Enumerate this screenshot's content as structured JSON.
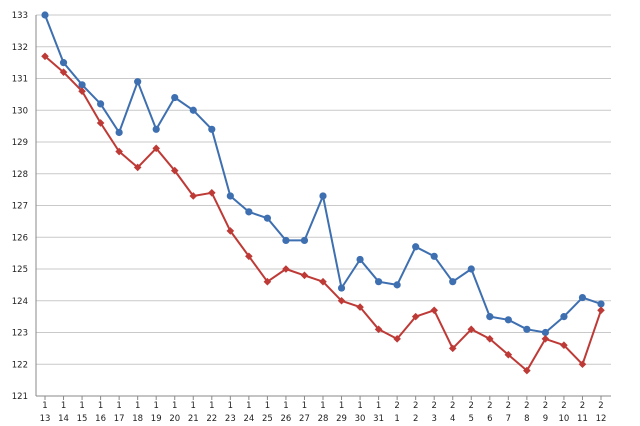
{
  "chart_data": {
    "type": "line",
    "title": "",
    "xlabel": "",
    "ylabel": "",
    "ylim": [
      121,
      133
    ],
    "y_ticks": [
      121,
      122,
      123,
      124,
      125,
      126,
      127,
      128,
      129,
      130,
      131,
      132,
      133
    ],
    "grid": "horizontal",
    "legend": "none",
    "categories": [
      {
        "line1": "1",
        "line2": "13"
      },
      {
        "line1": "1",
        "line2": "14"
      },
      {
        "line1": "1",
        "line2": "15"
      },
      {
        "line1": "1",
        "line2": "16"
      },
      {
        "line1": "1",
        "line2": "17"
      },
      {
        "line1": "1",
        "line2": "18"
      },
      {
        "line1": "1",
        "line2": "19"
      },
      {
        "line1": "1",
        "line2": "20"
      },
      {
        "line1": "1",
        "line2": "21"
      },
      {
        "line1": "1",
        "line2": "22"
      },
      {
        "line1": "1",
        "line2": "23"
      },
      {
        "line1": "1",
        "line2": "24"
      },
      {
        "line1": "1",
        "line2": "25"
      },
      {
        "line1": "1",
        "line2": "26"
      },
      {
        "line1": "1",
        "line2": "27"
      },
      {
        "line1": "1",
        "line2": "28"
      },
      {
        "line1": "1",
        "line2": "29"
      },
      {
        "line1": "1",
        "line2": "30"
      },
      {
        "line1": "1",
        "line2": "31"
      },
      {
        "line1": "2",
        "line2": "1"
      },
      {
        "line1": "2",
        "line2": "2"
      },
      {
        "line1": "2",
        "line2": "3"
      },
      {
        "line1": "2",
        "line2": "4"
      },
      {
        "line1": "2",
        "line2": "5"
      },
      {
        "line1": "2",
        "line2": "6"
      },
      {
        "line1": "2",
        "line2": "7"
      },
      {
        "line1": "2",
        "line2": "8"
      },
      {
        "line1": "2",
        "line2": "9"
      },
      {
        "line1": "2",
        "line2": "10"
      },
      {
        "line1": "2",
        "line2": "11"
      },
      {
        "line1": "2",
        "line2": "12"
      }
    ],
    "series": [
      {
        "color": "#3e6fb0",
        "marker": "circle",
        "values": [
          133.0,
          131.5,
          130.8,
          130.2,
          129.3,
          130.9,
          129.4,
          130.4,
          130.0,
          129.4,
          127.3,
          126.8,
          126.6,
          125.9,
          125.9,
          127.3,
          124.4,
          125.3,
          124.6,
          124.5,
          125.7,
          125.4,
          124.6,
          125.0,
          123.5,
          123.4,
          123.1,
          123.0,
          123.5,
          124.1,
          123.9
        ]
      },
      {
        "color": "#be3a36",
        "marker": "diamond",
        "values": [
          131.7,
          131.2,
          130.6,
          129.6,
          128.7,
          128.2,
          128.8,
          128.1,
          127.3,
          127.4,
          126.2,
          125.4,
          124.6,
          125.0,
          124.8,
          124.6,
          124.0,
          123.8,
          123.1,
          122.8,
          123.5,
          123.7,
          122.5,
          123.1,
          122.8,
          122.3,
          121.8,
          122.8,
          122.6,
          122.0,
          123.7
        ]
      }
    ]
  }
}
